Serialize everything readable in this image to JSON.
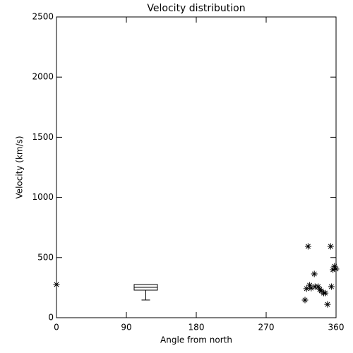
{
  "chart_data": {
    "type": "scatter",
    "title": "Velocity distribution",
    "xlabel": "Angle from north",
    "ylabel": "Velocity (km/s)",
    "x": [
      0,
      320,
      322,
      324,
      326,
      328,
      332,
      333,
      337,
      339,
      341,
      344,
      346,
      349,
      353,
      354,
      356,
      358,
      360
    ],
    "y": [
      276,
      147,
      241,
      593,
      270,
      246,
      364,
      258,
      258,
      235,
      223,
      205,
      205,
      111,
      593,
      258,
      399,
      428,
      405
    ],
    "box": {
      "x_range": [
        100,
        130
      ],
      "q1": 229,
      "median": 252,
      "q3": 276,
      "min": 147,
      "max": 276
    },
    "xlim": [
      0,
      360
    ],
    "ylim": [
      0,
      2500
    ],
    "xticks": [
      0,
      90,
      180,
      270,
      360
    ],
    "yticks": [
      0,
      500,
      1000,
      1500,
      2000,
      2500
    ]
  }
}
